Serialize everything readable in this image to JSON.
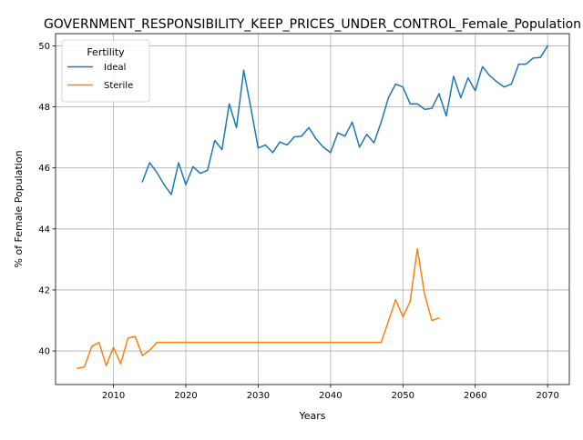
{
  "chart_data": {
    "type": "line",
    "title": "GOVERNMENT_RESPONSIBILITY_KEEP_PRICES_UNDER_CONTROL_Female_Population",
    "xlabel": "Years",
    "ylabel": "% of Female Population",
    "xlim": [
      2002,
      2073
    ],
    "ylim": [
      38.9,
      50.4
    ],
    "xticks": [
      2010,
      2020,
      2030,
      2040,
      2050,
      2060,
      2070
    ],
    "yticks": [
      40,
      42,
      44,
      46,
      48,
      50
    ],
    "grid": true,
    "legend": {
      "title": "Fertility",
      "placement": "top-left"
    },
    "series": [
      {
        "name": "Ideal",
        "color": "#1f77b4",
        "x": [
          2014,
          2015,
          2016,
          2017,
          2018,
          2019,
          2020,
          2021,
          2022,
          2023,
          2024,
          2025,
          2026,
          2027,
          2028,
          2029,
          2030,
          2031,
          2032,
          2033,
          2034,
          2035,
          2036,
          2037,
          2038,
          2039,
          2040,
          2041,
          2042,
          2043,
          2044,
          2045,
          2046,
          2047,
          2048,
          2049,
          2050,
          2051,
          2052,
          2053,
          2054,
          2055,
          2056,
          2057,
          2058,
          2059,
          2060,
          2061,
          2062,
          2063,
          2064,
          2065,
          2066,
          2067,
          2068,
          2069,
          2070
        ],
        "values": [
          45.55,
          46.17,
          45.85,
          45.45,
          45.13,
          46.17,
          45.45,
          46.04,
          45.82,
          45.92,
          46.9,
          46.6,
          48.1,
          47.32,
          49.2,
          47.95,
          46.65,
          46.75,
          46.5,
          46.85,
          46.75,
          47.02,
          47.04,
          47.32,
          46.95,
          46.68,
          46.5,
          47.15,
          47.04,
          47.5,
          46.68,
          47.1,
          46.82,
          47.5,
          48.3,
          48.75,
          48.65,
          48.1,
          48.1,
          47.92,
          47.95,
          48.43,
          47.7,
          49.0,
          48.3,
          48.95,
          48.53,
          49.32,
          49.02,
          48.82,
          48.65,
          48.75,
          49.4,
          49.4,
          49.6,
          49.62,
          50.0
        ]
      },
      {
        "name": "Sterile",
        "color": "#ff7f0e",
        "x": [
          2005,
          2006,
          2007,
          2008,
          2009,
          2010,
          2011,
          2012,
          2013,
          2014,
          2015,
          2016,
          2017,
          2018,
          2019,
          2020,
          2021,
          2022,
          2023,
          2024,
          2025,
          2026,
          2027,
          2028,
          2029,
          2030,
          2031,
          2032,
          2033,
          2034,
          2035,
          2036,
          2037,
          2038,
          2039,
          2040,
          2041,
          2042,
          2043,
          2044,
          2045,
          2046,
          2047,
          2048,
          2049,
          2050,
          2051,
          2052,
          2053,
          2054,
          2055
        ],
        "values": [
          39.43,
          39.48,
          40.15,
          40.28,
          39.52,
          40.12,
          39.58,
          40.42,
          40.48,
          39.85,
          40.02,
          40.28,
          40.28,
          40.28,
          40.28,
          40.28,
          40.28,
          40.28,
          40.28,
          40.28,
          40.28,
          40.28,
          40.28,
          40.28,
          40.28,
          40.28,
          40.28,
          40.28,
          40.28,
          40.28,
          40.28,
          40.28,
          40.28,
          40.28,
          40.28,
          40.28,
          40.28,
          40.28,
          40.28,
          40.28,
          40.28,
          40.28,
          40.28,
          40.98,
          41.68,
          41.12,
          41.62,
          43.35,
          41.85,
          41.0,
          41.08
        ]
      }
    ]
  }
}
